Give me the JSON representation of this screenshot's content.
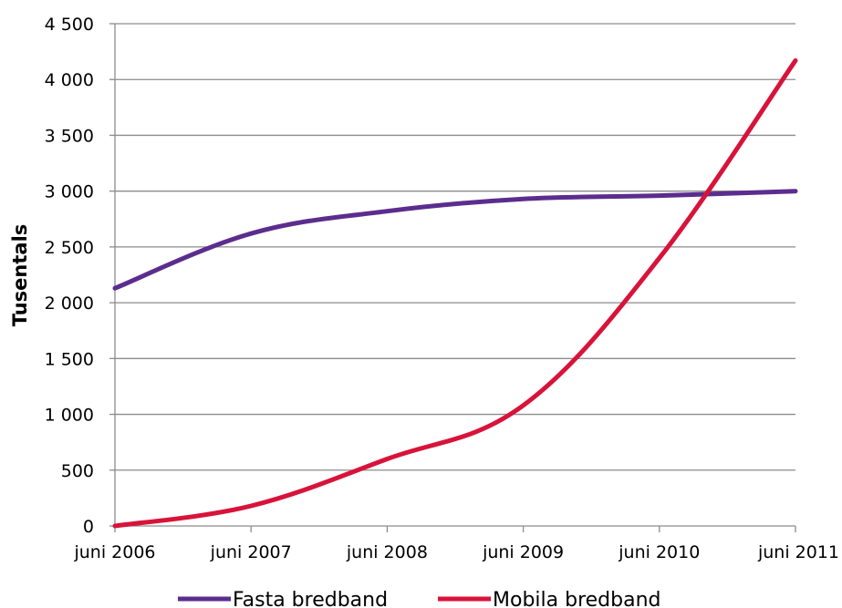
{
  "chart_data": {
    "type": "line",
    "title": "",
    "xlabel": "",
    "ylabel": "Tusentals",
    "categories": [
      "juni 2006",
      "juni 2007",
      "juni 2008",
      "juni 2009",
      "juni 2010",
      "juni 2011"
    ],
    "ylim": [
      0,
      4500
    ],
    "yticks": [
      {
        "value": 0,
        "label": "0"
      },
      {
        "value": 500,
        "label": "500"
      },
      {
        "value": 1000,
        "label": "1 000"
      },
      {
        "value": 1500,
        "label": "1 500"
      },
      {
        "value": 2000,
        "label": "2 000"
      },
      {
        "value": 2500,
        "label": "2 500"
      },
      {
        "value": 3000,
        "label": "3 000"
      },
      {
        "value": 3500,
        "label": "3 500"
      },
      {
        "value": 4000,
        "label": "4 000"
      },
      {
        "value": 4500,
        "label": "4 500"
      }
    ],
    "grid": "horizontal",
    "legend_position": "bottom",
    "series": [
      {
        "name": "Fasta bredband",
        "color": "#5b2d8e",
        "values": [
          2130,
          2620,
          2820,
          2930,
          2960,
          3000
        ]
      },
      {
        "name": "Mobila bredband",
        "color": "#d8133a",
        "values": [
          0,
          180,
          600,
          1080,
          2400,
          4170
        ]
      }
    ]
  }
}
